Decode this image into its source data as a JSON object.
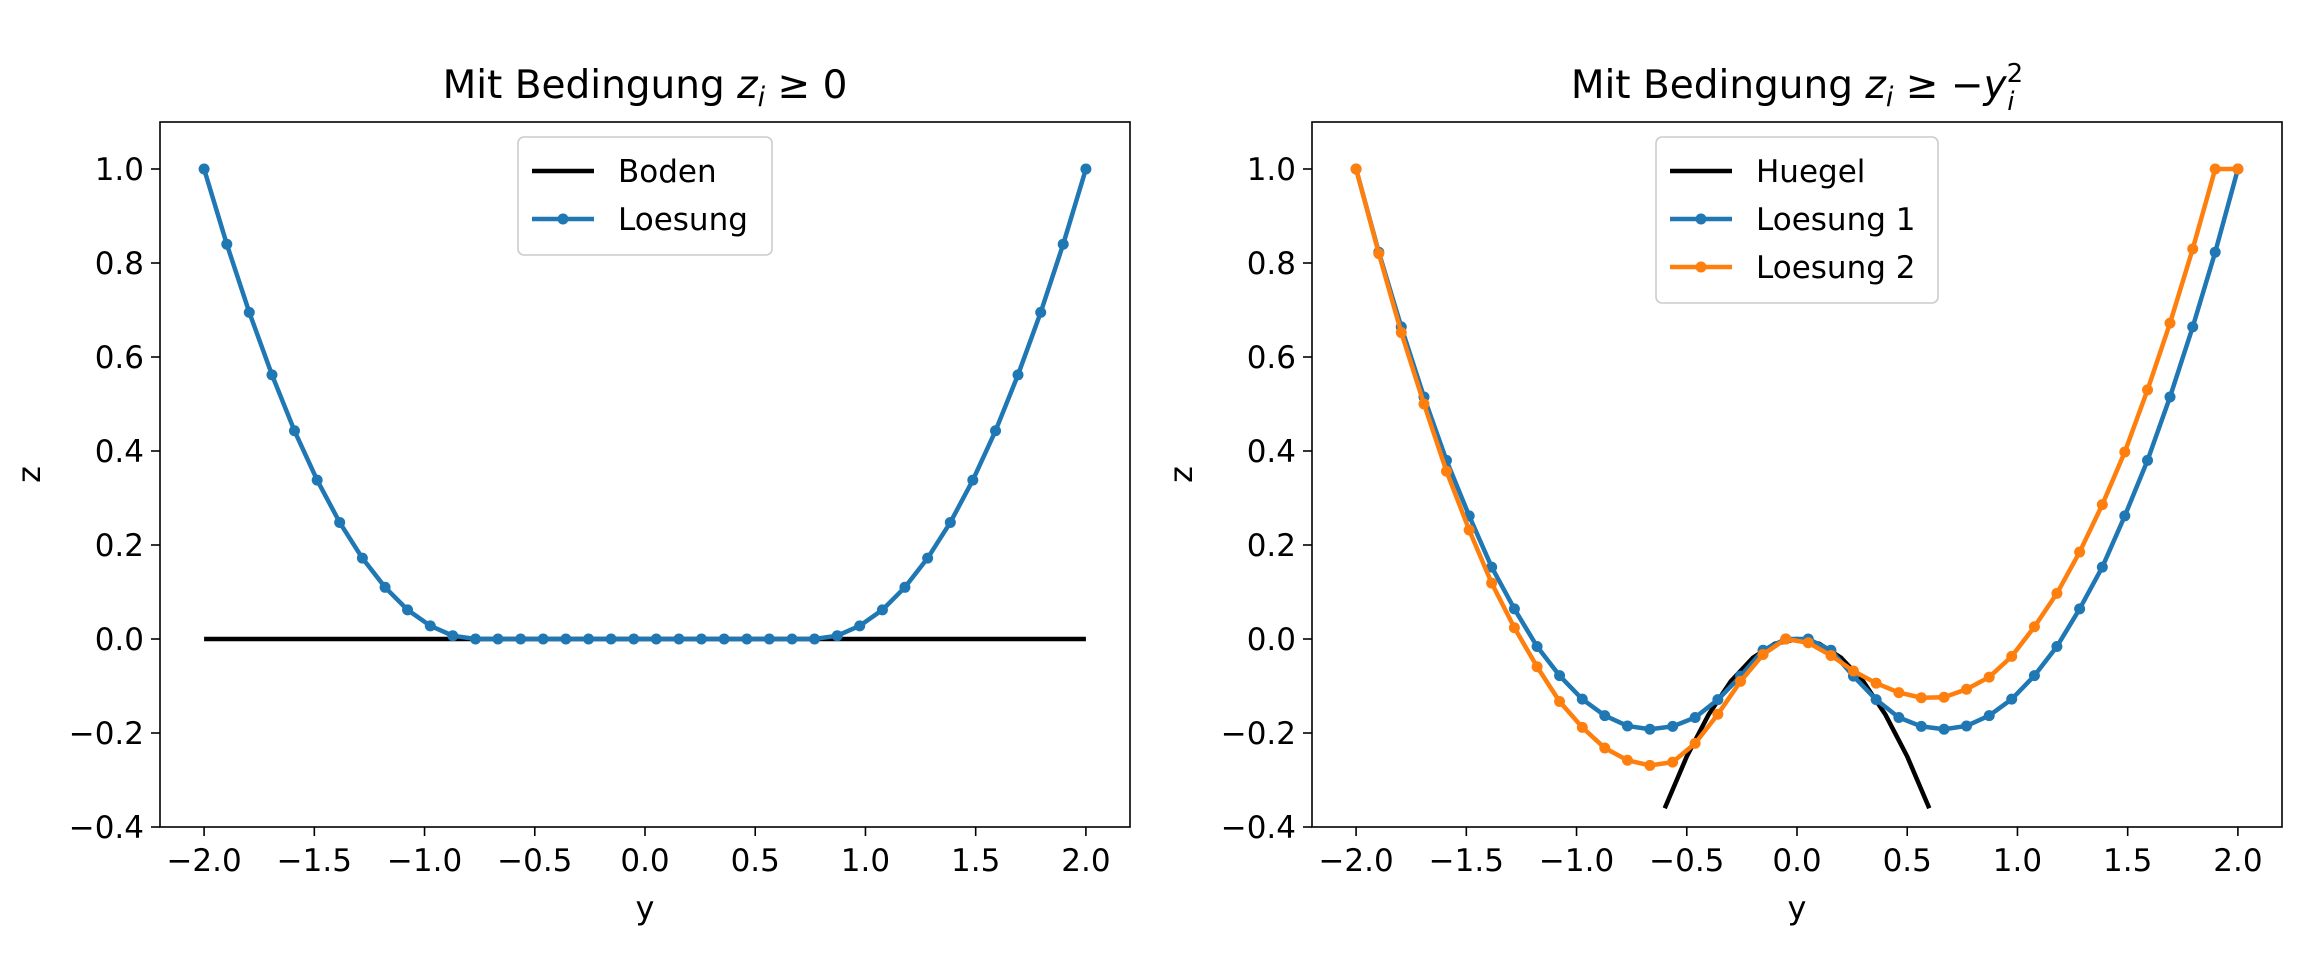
{
  "chart_data": [
    {
      "type": "line",
      "title_parts": [
        "Mit Bedingung ",
        "z",
        "i",
        " ≥ 0",
        ""
      ],
      "xlabel": "y",
      "ylabel": "z",
      "xlim": [
        -2.2,
        2.2
      ],
      "ylim": [
        -0.4,
        1.1
      ],
      "xticks": [
        -2.0,
        -1.5,
        -1.0,
        -0.5,
        0.0,
        0.5,
        1.0,
        1.5,
        2.0
      ],
      "xtick_labels": [
        "−2.0",
        "−1.5",
        "−1.0",
        "−0.5",
        "0.0",
        "0.5",
        "1.0",
        "1.5",
        "2.0"
      ],
      "yticks": [
        -0.4,
        -0.2,
        0.0,
        0.2,
        0.4,
        0.6,
        0.8,
        1.0
      ],
      "ytick_labels": [
        "−0.4",
        "−0.2",
        "0.0",
        "0.2",
        "0.4",
        "0.6",
        "0.8",
        "1.0"
      ],
      "legend_position": "upper center",
      "grid": false,
      "series": [
        {
          "name": "Boden",
          "color": "#000000",
          "marker": false,
          "x": [
            -2.0,
            2.0
          ],
          "y": [
            0.0,
            0.0
          ]
        },
        {
          "name": "Loesung",
          "color": "#1f77b4",
          "marker": true,
          "x": [
            -2.0,
            -1.897,
            -1.795,
            -1.692,
            -1.59,
            -1.487,
            -1.385,
            -1.282,
            -1.179,
            -1.077,
            -0.974,
            -0.872,
            -0.769,
            -0.667,
            -0.564,
            -0.462,
            -0.359,
            -0.256,
            -0.154,
            -0.051,
            0.051,
            0.154,
            0.256,
            0.359,
            0.462,
            0.564,
            0.667,
            0.769,
            0.872,
            0.974,
            1.077,
            1.179,
            1.282,
            1.385,
            1.487,
            1.59,
            1.692,
            1.795,
            1.897,
            2.0
          ],
          "y": [
            1.0,
            0.84,
            0.695,
            0.562,
            0.443,
            0.338,
            0.248,
            0.172,
            0.11,
            0.062,
            0.028,
            0.007,
            0.0,
            0.0,
            0.0,
            0.0,
            0.0,
            0.0,
            0.0,
            0.0,
            0.0,
            0.0,
            0.0,
            0.0,
            0.0,
            0.0,
            0.0,
            0.0,
            0.007,
            0.028,
            0.062,
            0.11,
            0.172,
            0.248,
            0.338,
            0.443,
            0.562,
            0.695,
            0.84,
            1.0
          ]
        }
      ]
    },
    {
      "type": "line",
      "title_parts": [
        "Mit Bedingung ",
        "z",
        "i",
        " ≥ −",
        "y"
      ],
      "title_super": "2",
      "title_sub2": "i",
      "xlabel": "y",
      "ylabel": "z",
      "xlim": [
        -2.2,
        2.2
      ],
      "ylim": [
        -0.4,
        1.1
      ],
      "xticks": [
        -2.0,
        -1.5,
        -1.0,
        -0.5,
        0.0,
        0.5,
        1.0,
        1.5,
        2.0
      ],
      "xtick_labels": [
        "−2.0",
        "−1.5",
        "−1.0",
        "−0.5",
        "0.0",
        "0.5",
        "1.0",
        "1.5",
        "2.0"
      ],
      "yticks": [
        -0.4,
        -0.2,
        0.0,
        0.2,
        0.4,
        0.6,
        0.8,
        1.0
      ],
      "ytick_labels": [
        "−0.4",
        "−0.2",
        "0.0",
        "0.2",
        "0.4",
        "0.6",
        "0.8",
        "1.0"
      ],
      "legend_position": "upper center",
      "grid": false,
      "series": [
        {
          "name": "Huegel",
          "color": "#000000",
          "marker": false,
          "x": [
            -0.6,
            -0.5,
            -0.4,
            -0.3,
            -0.2,
            -0.1,
            0.0,
            0.1,
            0.2,
            0.3,
            0.4,
            0.5,
            0.6
          ],
          "y": [
            -0.36,
            -0.25,
            -0.16,
            -0.09,
            -0.04,
            -0.01,
            0.0,
            -0.01,
            -0.04,
            -0.09,
            -0.16,
            -0.25,
            -0.36
          ]
        },
        {
          "name": "Loesung 1",
          "color": "#1f77b4",
          "marker": true,
          "x": [
            -2.0,
            -1.897,
            -1.795,
            -1.692,
            -1.59,
            -1.487,
            -1.385,
            -1.282,
            -1.179,
            -1.077,
            -0.974,
            -0.872,
            -0.769,
            -0.667,
            -0.564,
            -0.462,
            -0.359,
            -0.256,
            -0.154,
            -0.051,
            0.051,
            0.154,
            0.256,
            0.359,
            0.462,
            0.564,
            0.667,
            0.769,
            0.872,
            0.974,
            1.077,
            1.179,
            1.282,
            1.385,
            1.487,
            1.59,
            1.692,
            1.795,
            1.897,
            2.0
          ],
          "y": [
            1.0,
            0.823,
            0.664,
            0.515,
            0.38,
            0.262,
            0.153,
            0.064,
            -0.016,
            -0.078,
            -0.128,
            -0.163,
            -0.185,
            -0.192,
            -0.186,
            -0.167,
            -0.129,
            -0.079,
            -0.024,
            0.0,
            0.0,
            -0.024,
            -0.079,
            -0.129,
            -0.167,
            -0.186,
            -0.192,
            -0.185,
            -0.163,
            -0.128,
            -0.078,
            -0.016,
            0.064,
            0.153,
            0.262,
            0.38,
            0.515,
            0.664,
            0.823,
            1.0
          ]
        },
        {
          "name": "Loesung 2",
          "color": "#ff7f0e",
          "marker": true,
          "x": [
            -2.0,
            -1.897,
            -1.795,
            -1.692,
            -1.59,
            -1.487,
            -1.385,
            -1.282,
            -1.179,
            -1.077,
            -0.974,
            -0.872,
            -0.769,
            -0.667,
            -0.564,
            -0.462,
            -0.359,
            -0.256,
            -0.154,
            -0.051,
            0.051,
            0.154,
            0.256,
            0.359,
            0.462,
            0.564,
            0.667,
            0.769,
            0.872,
            0.974,
            1.077,
            1.179,
            1.282,
            1.385,
            1.487,
            1.59,
            1.692,
            1.795,
            1.897,
            2.0
          ],
          "y": [
            1.0,
            0.82,
            0.652,
            0.5,
            0.357,
            0.232,
            0.119,
            0.024,
            -0.059,
            -0.133,
            -0.188,
            -0.232,
            -0.258,
            -0.269,
            -0.262,
            -0.222,
            -0.16,
            -0.09,
            -0.033,
            0.0,
            -0.008,
            -0.035,
            -0.068,
            -0.094,
            -0.114,
            -0.125,
            -0.124,
            -0.107,
            -0.081,
            -0.037,
            0.026,
            0.097,
            0.185,
            0.286,
            0.398,
            0.53,
            0.672,
            0.83,
            1.0,
            1.0
          ]
        }
      ]
    }
  ]
}
